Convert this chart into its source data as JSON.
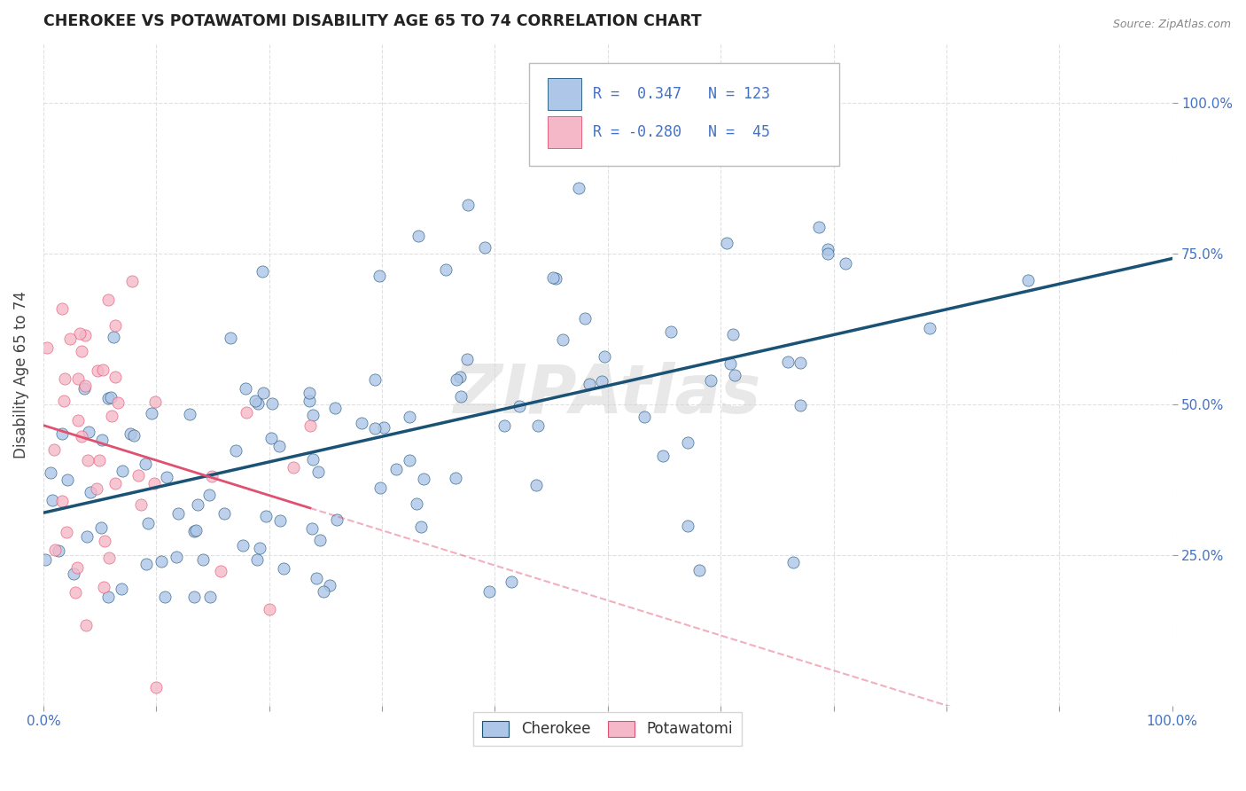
{
  "title": "CHEROKEE VS POTAWATOMI DISABILITY AGE 65 TO 74 CORRELATION CHART",
  "source": "Source: ZipAtlas.com",
  "ylabel": "Disability Age 65 to 74",
  "cherokee_R": 0.347,
  "cherokee_N": 123,
  "potawatomi_R": -0.28,
  "potawatomi_N": 45,
  "cherokee_color": "#aec6e8",
  "cherokee_line_color": "#1a5276",
  "potawatomi_color": "#f5b8c8",
  "potawatomi_line_color": "#e05070",
  "watermark": "ZIPAtlas",
  "background_color": "#ffffff",
  "grid_color": "#dddddd",
  "ytick_labels": [
    "25.0%",
    "50.0%",
    "75.0%",
    "100.0%"
  ],
  "ytick_values": [
    0.25,
    0.5,
    0.75,
    1.0
  ],
  "xlim": [
    0.0,
    1.0
  ],
  "ylim": [
    0.0,
    1.1
  ]
}
